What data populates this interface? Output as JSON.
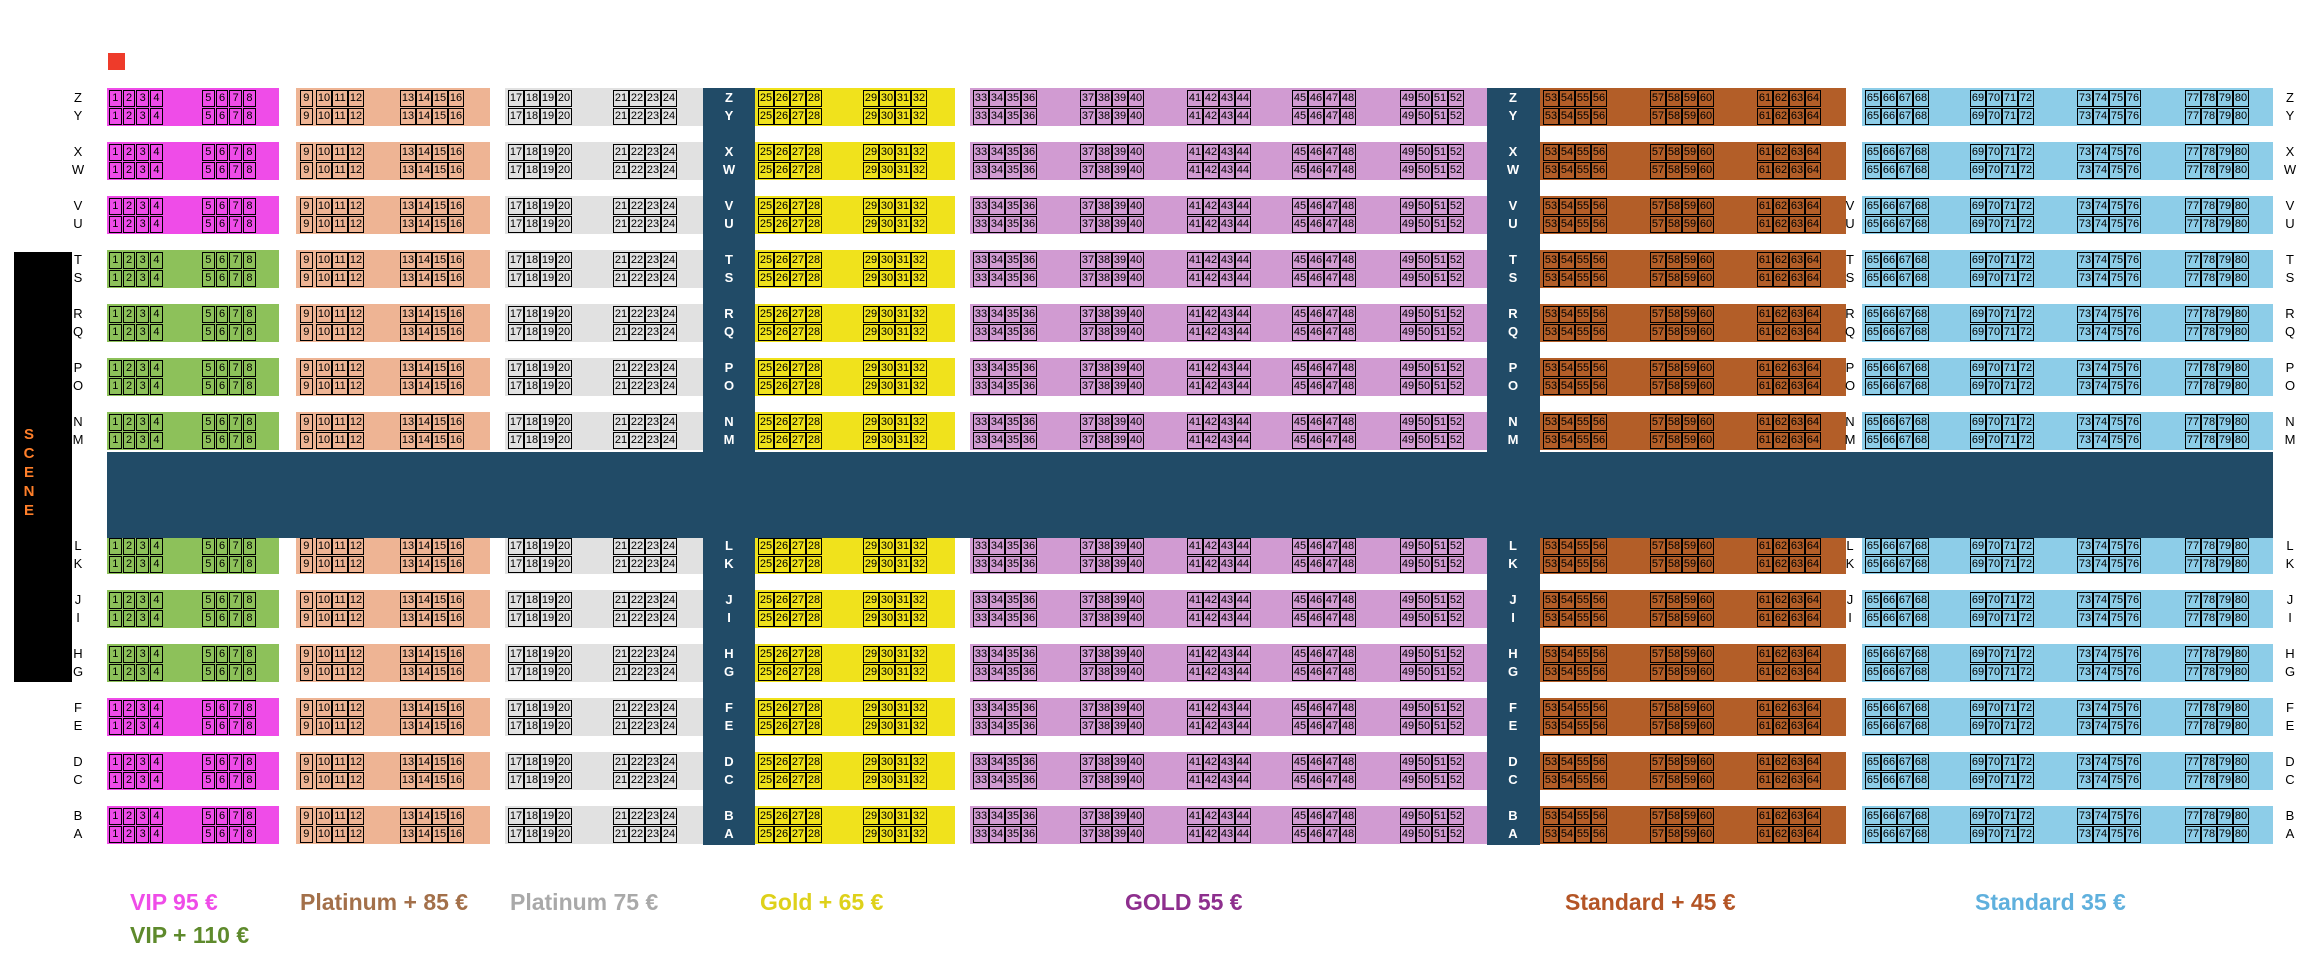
{
  "stage_label": "SCENE",
  "upper_rows": [
    "Z",
    "Y",
    "X",
    "W",
    "V",
    "U",
    "T",
    "S",
    "R",
    "Q",
    "P",
    "O",
    "N",
    "M"
  ],
  "lower_rows": [
    "L",
    "K",
    "J",
    "I",
    "H",
    "G",
    "F",
    "E",
    "D",
    "C",
    "B",
    "A"
  ],
  "colors": {
    "vip": "#ef4ce8",
    "vip_plus": "#8dc15a",
    "platinum_plus": "#eeb494",
    "platinum": "#e1e1e1",
    "gold_plus": "#f0e21c",
    "gold": "#d19bd2",
    "standard_plus": "#b35e28",
    "standard": "#8dcde8",
    "aisle": "#214b67",
    "stage": "#000000",
    "marker": "#ee3b2a"
  },
  "legend": {
    "vip": {
      "label": "VIP  95 €",
      "color": "#ef4ce8"
    },
    "vip_plus": {
      "label": "VIP +  110 €",
      "color": "#5e8a2c"
    },
    "platinum_plus": {
      "label": "Platinum + 85 €",
      "color": "#a3704a"
    },
    "platinum": {
      "label": "Platinum 75 €",
      "color": "#a9a9a9"
    },
    "gold_plus": {
      "label": "Gold +  65 €",
      "color": "#ded11a"
    },
    "gold": {
      "label": "GOLD  55 €",
      "color": "#8e2f8e"
    },
    "standard_plus": {
      "label": "Standard +  45 €",
      "color": "#b45526"
    },
    "standard": {
      "label": "Standard 35 €",
      "color": "#5fb0dd"
    }
  },
  "seat_groups": [
    {
      "seats": [
        1,
        2,
        3,
        4
      ]
    },
    {
      "seats": [
        5,
        6,
        7,
        8
      ]
    },
    {
      "seats": [
        9,
        10,
        11,
        12
      ]
    },
    {
      "seats": [
        13,
        14,
        15,
        16
      ]
    },
    {
      "seats": [
        17,
        18,
        19,
        20
      ]
    },
    {
      "seats": [
        21,
        22,
        23,
        24
      ]
    },
    {
      "seats": [
        25,
        26,
        27,
        28
      ]
    },
    {
      "seats": [
        29,
        30,
        31,
        32
      ]
    },
    {
      "seats": [
        33,
        34,
        35,
        36
      ]
    },
    {
      "seats": [
        37,
        38,
        39,
        40
      ]
    },
    {
      "seats": [
        41,
        42,
        43,
        44
      ]
    },
    {
      "seats": [
        45,
        46,
        47,
        48
      ]
    },
    {
      "seats": [
        49,
        50,
        51,
        52
      ]
    },
    {
      "seats": [
        53,
        54,
        55,
        56
      ]
    },
    {
      "seats": [
        57,
        58,
        59,
        60
      ]
    },
    {
      "seats": [
        61,
        62,
        63,
        64
      ]
    },
    {
      "seats": [
        65,
        66,
        67,
        68
      ]
    },
    {
      "seats": [
        69,
        70,
        71,
        72
      ]
    },
    {
      "seats": [
        73,
        74,
        75,
        76
      ]
    },
    {
      "seats": [
        77,
        78,
        79,
        80
      ]
    }
  ],
  "vip_plus_rows": [
    "T",
    "S",
    "R",
    "Q",
    "P",
    "O",
    "N",
    "M",
    "L",
    "K",
    "J",
    "I",
    "H",
    "G"
  ]
}
